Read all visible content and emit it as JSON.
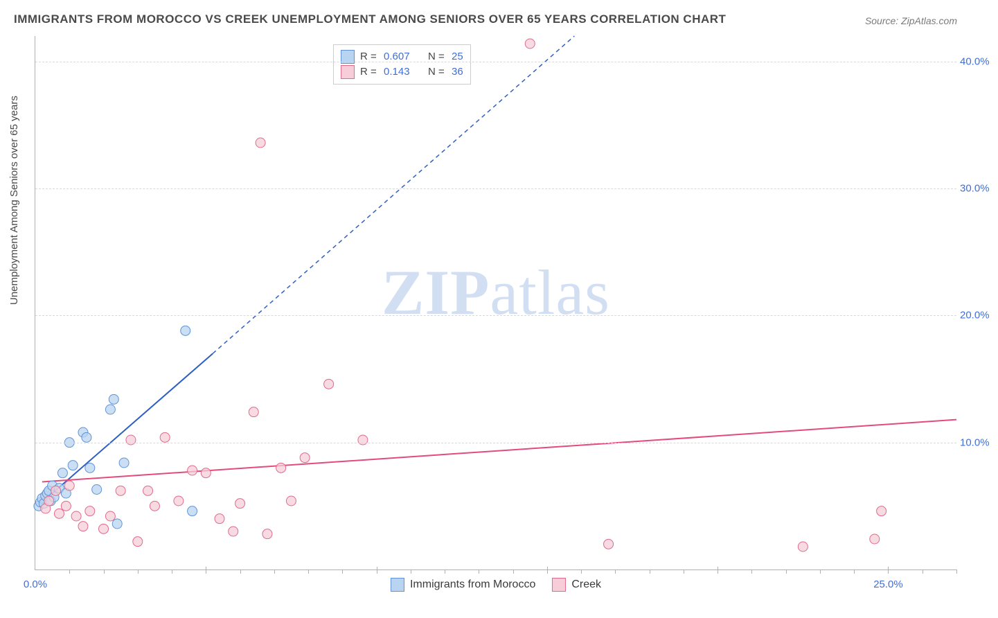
{
  "title": "IMMIGRANTS FROM MOROCCO VS CREEK UNEMPLOYMENT AMONG SENIORS OVER 65 YEARS CORRELATION CHART",
  "source_label": "Source: ZipAtlas.com",
  "watermark": {
    "zip": "ZIP",
    "atlas": "atlas"
  },
  "y_axis_label": "Unemployment Among Seniors over 65 years",
  "chart": {
    "type": "scatter-correlation",
    "background_color": "#ffffff",
    "grid_color": "#d8d8d8",
    "axis_color": "#b0b0b0",
    "tick_label_color": "#3f6fd6",
    "xlim": [
      0,
      27
    ],
    "ylim": [
      0,
      42
    ],
    "y_ticks": [
      10.0,
      20.0,
      30.0,
      40.0
    ],
    "x_ticks_major_step": 5,
    "x_ticks_minor_step": 1,
    "x_tick_label": "0.0%",
    "x_tick_label_right": "25.0%",
    "series": [
      {
        "name": "Immigrants from Morocco",
        "color_fill": "#b9d4f0",
        "color_stroke": "#5f93d6",
        "marker_radius": 7,
        "r_value": "0.607",
        "n_value": "25",
        "trend": {
          "solid": {
            "x1": 0.2,
            "y1": 5.3,
            "x2": 5.2,
            "y2": 17.0
          },
          "dashed": {
            "x1": 5.2,
            "y1": 17.0,
            "x2": 15.8,
            "y2": 42.0
          },
          "line_color": "#2f5fc4",
          "line_width": 2
        },
        "points": [
          {
            "x": 0.1,
            "y": 5.0
          },
          {
            "x": 0.15,
            "y": 5.3
          },
          {
            "x": 0.2,
            "y": 5.6
          },
          {
            "x": 0.25,
            "y": 5.2
          },
          {
            "x": 0.3,
            "y": 5.8
          },
          {
            "x": 0.35,
            "y": 6.0
          },
          {
            "x": 0.4,
            "y": 6.2
          },
          {
            "x": 0.45,
            "y": 5.4
          },
          {
            "x": 0.5,
            "y": 6.6
          },
          {
            "x": 0.55,
            "y": 5.7
          },
          {
            "x": 0.7,
            "y": 6.4
          },
          {
            "x": 0.8,
            "y": 7.6
          },
          {
            "x": 0.9,
            "y": 6.0
          },
          {
            "x": 1.0,
            "y": 10.0
          },
          {
            "x": 1.1,
            "y": 8.2
          },
          {
            "x": 1.4,
            "y": 10.8
          },
          {
            "x": 1.5,
            "y": 10.4
          },
          {
            "x": 1.6,
            "y": 8.0
          },
          {
            "x": 1.8,
            "y": 6.3
          },
          {
            "x": 2.2,
            "y": 12.6
          },
          {
            "x": 2.3,
            "y": 13.4
          },
          {
            "x": 2.4,
            "y": 3.6
          },
          {
            "x": 2.6,
            "y": 8.4
          },
          {
            "x": 4.4,
            "y": 18.8
          },
          {
            "x": 4.6,
            "y": 4.6
          }
        ]
      },
      {
        "name": "Creek",
        "color_fill": "#f6cdd8",
        "color_stroke": "#e06a8c",
        "marker_radius": 7,
        "r_value": "0.143",
        "n_value": "36",
        "trend": {
          "solid": {
            "x1": 0.2,
            "y1": 6.9,
            "x2": 27.0,
            "y2": 11.8
          },
          "line_color": "#e34b7a",
          "line_width": 2
        },
        "points": [
          {
            "x": 0.3,
            "y": 4.8
          },
          {
            "x": 0.4,
            "y": 5.4
          },
          {
            "x": 0.6,
            "y": 6.2
          },
          {
            "x": 0.7,
            "y": 4.4
          },
          {
            "x": 0.9,
            "y": 5.0
          },
          {
            "x": 1.0,
            "y": 6.6
          },
          {
            "x": 1.2,
            "y": 4.2
          },
          {
            "x": 1.4,
            "y": 3.4
          },
          {
            "x": 1.6,
            "y": 4.6
          },
          {
            "x": 2.0,
            "y": 3.2
          },
          {
            "x": 2.2,
            "y": 4.2
          },
          {
            "x": 2.5,
            "y": 6.2
          },
          {
            "x": 2.8,
            "y": 10.2
          },
          {
            "x": 3.0,
            "y": 2.2
          },
          {
            "x": 3.3,
            "y": 6.2
          },
          {
            "x": 3.5,
            "y": 5.0
          },
          {
            "x": 3.8,
            "y": 10.4
          },
          {
            "x": 4.2,
            "y": 5.4
          },
          {
            "x": 4.6,
            "y": 7.8
          },
          {
            "x": 5.0,
            "y": 7.6
          },
          {
            "x": 5.4,
            "y": 4.0
          },
          {
            "x": 5.8,
            "y": 3.0
          },
          {
            "x": 6.0,
            "y": 5.2
          },
          {
            "x": 6.4,
            "y": 12.4
          },
          {
            "x": 6.6,
            "y": 33.6
          },
          {
            "x": 6.8,
            "y": 2.8
          },
          {
            "x": 7.2,
            "y": 8.0
          },
          {
            "x": 7.5,
            "y": 5.4
          },
          {
            "x": 7.9,
            "y": 8.8
          },
          {
            "x": 8.6,
            "y": 14.6
          },
          {
            "x": 9.6,
            "y": 10.2
          },
          {
            "x": 14.5,
            "y": 41.4
          },
          {
            "x": 16.8,
            "y": 2.0
          },
          {
            "x": 22.5,
            "y": 1.8
          },
          {
            "x": 24.6,
            "y": 2.4
          },
          {
            "x": 24.8,
            "y": 4.6
          }
        ]
      }
    ]
  },
  "legend_box": {
    "rows": [
      {
        "swatch_fill": "#b9d4f0",
        "swatch_stroke": "#5f93d6",
        "r_label": "R =",
        "r_val": "0.607",
        "n_label": "N =",
        "n_val": "25"
      },
      {
        "swatch_fill": "#f6cdd8",
        "swatch_stroke": "#e06a8c",
        "r_label": "R =",
        "r_val": "0.143",
        "n_label": "N =",
        "n_val": "36"
      }
    ]
  },
  "bottom_legend": [
    {
      "swatch_fill": "#b9d4f0",
      "swatch_stroke": "#5f93d6",
      "label": "Immigrants from Morocco"
    },
    {
      "swatch_fill": "#f6cdd8",
      "swatch_stroke": "#e06a8c",
      "label": "Creek"
    }
  ]
}
